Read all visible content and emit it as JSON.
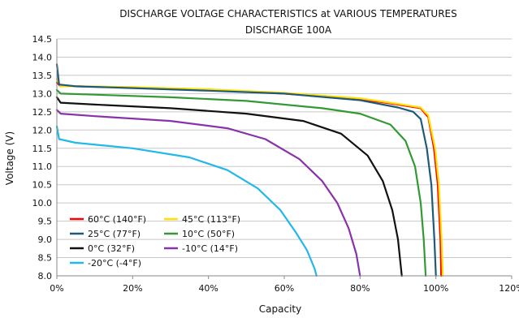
{
  "chart_data": {
    "type": "line",
    "title": "DISCHARGE VOLTAGE CHARACTERISTICS at VARIOUS TEMPERATURES",
    "subtitle": "DISCHARGE 100A",
    "xlabel": "Capacity",
    "ylabel": "Voltage (V)",
    "xlim": [
      0,
      120
    ],
    "ylim": [
      8.0,
      14.5
    ],
    "x_ticks": [
      "0%",
      "20%",
      "40%",
      "60%",
      "80%",
      "100%",
      "120%"
    ],
    "x_tick_values": [
      0,
      20,
      40,
      60,
      80,
      100,
      120
    ],
    "y_ticks": [
      "14.5",
      "14.0",
      "13.5",
      "13.0",
      "12.5",
      "12.0",
      "11.5",
      "11.0",
      "10.5",
      "10.0",
      "9.5",
      "9.0",
      "8.5",
      "8.0"
    ],
    "y_tick_values": [
      14.5,
      14.0,
      13.5,
      13.0,
      12.5,
      12.0,
      11.5,
      11.0,
      10.5,
      10.0,
      9.5,
      9.0,
      8.5,
      8.0
    ],
    "grid": "horizontal",
    "legend_position": "bottom-left",
    "series": [
      {
        "name": "60°C  (140°F)",
        "color": "#ff0000",
        "points": [
          [
            0,
            13.3
          ],
          [
            1,
            13.2
          ],
          [
            5,
            13.2
          ],
          [
            20,
            13.17
          ],
          [
            40,
            13.1
          ],
          [
            60,
            13.0
          ],
          [
            80,
            12.85
          ],
          [
            90,
            12.7
          ],
          [
            96,
            12.6
          ],
          [
            98,
            12.35
          ],
          [
            99.5,
            11.5
          ],
          [
            100.5,
            10.5
          ],
          [
            101.2,
            9.0
          ],
          [
            101.4,
            8.0
          ]
        ]
      },
      {
        "name": "45°C  (113°F)",
        "color": "#ffe000",
        "points": [
          [
            0,
            13.4
          ],
          [
            1,
            13.2
          ],
          [
            5,
            13.2
          ],
          [
            20,
            13.18
          ],
          [
            40,
            13.12
          ],
          [
            60,
            13.02
          ],
          [
            80,
            12.87
          ],
          [
            90,
            12.72
          ],
          [
            96,
            12.62
          ],
          [
            98,
            12.4
          ],
          [
            99.8,
            11.5
          ],
          [
            100.8,
            10.5
          ],
          [
            101.5,
            9.0
          ],
          [
            101.8,
            8.0
          ]
        ]
      },
      {
        "name": "25°C  (77°F)",
        "color": "#1f5a7a",
        "points": [
          [
            0,
            13.8
          ],
          [
            0.6,
            13.25
          ],
          [
            5,
            13.2
          ],
          [
            20,
            13.15
          ],
          [
            40,
            13.08
          ],
          [
            60,
            13.0
          ],
          [
            80,
            12.82
          ],
          [
            90,
            12.62
          ],
          [
            94,
            12.5
          ],
          [
            96,
            12.3
          ],
          [
            97.6,
            11.5
          ],
          [
            98.8,
            10.5
          ],
          [
            99.6,
            9.0
          ],
          [
            100,
            8.0
          ]
        ]
      },
      {
        "name": "10°C  (50°F)",
        "color": "#339933",
        "points": [
          [
            0,
            13.1
          ],
          [
            1,
            13.0
          ],
          [
            10,
            12.97
          ],
          [
            30,
            12.9
          ],
          [
            50,
            12.8
          ],
          [
            70,
            12.6
          ],
          [
            80,
            12.45
          ],
          [
            88,
            12.15
          ],
          [
            92,
            11.7
          ],
          [
            94.5,
            11.0
          ],
          [
            96,
            10.0
          ],
          [
            96.8,
            9.0
          ],
          [
            97.3,
            8.0
          ]
        ]
      },
      {
        "name": "0°C  (32°F)",
        "color": "#111111",
        "points": [
          [
            0,
            12.9
          ],
          [
            1,
            12.75
          ],
          [
            10,
            12.7
          ],
          [
            30,
            12.6
          ],
          [
            50,
            12.45
          ],
          [
            65,
            12.25
          ],
          [
            75,
            11.9
          ],
          [
            82,
            11.3
          ],
          [
            86,
            10.6
          ],
          [
            88.5,
            9.8
          ],
          [
            90,
            9.0
          ],
          [
            91,
            8.0
          ]
        ]
      },
      {
        "name": "-10°C  (14°F)",
        "color": "#8833aa",
        "points": [
          [
            0,
            12.55
          ],
          [
            1,
            12.45
          ],
          [
            10,
            12.38
          ],
          [
            30,
            12.25
          ],
          [
            45,
            12.05
          ],
          [
            55,
            11.75
          ],
          [
            64,
            11.2
          ],
          [
            70,
            10.6
          ],
          [
            74,
            10.0
          ],
          [
            77,
            9.3
          ],
          [
            79,
            8.6
          ],
          [
            80,
            8.0
          ]
        ]
      },
      {
        "name": "-20°C  (-4°F)",
        "color": "#22b8e8",
        "points": [
          [
            0,
            12.1
          ],
          [
            0.6,
            11.75
          ],
          [
            5,
            11.65
          ],
          [
            20,
            11.5
          ],
          [
            35,
            11.25
          ],
          [
            45,
            10.9
          ],
          [
            53,
            10.4
          ],
          [
            59,
            9.8
          ],
          [
            63,
            9.2
          ],
          [
            66,
            8.7
          ],
          [
            68,
            8.2
          ],
          [
            68.5,
            8.0
          ]
        ]
      }
    ]
  }
}
